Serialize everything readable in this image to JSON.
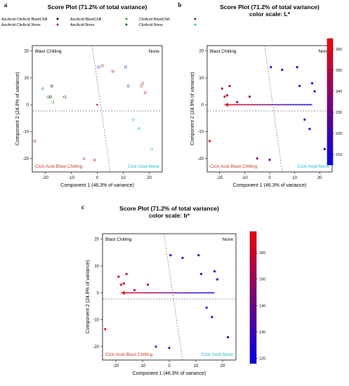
{
  "panel_letters": [
    "a",
    "b",
    "c"
  ],
  "chart_data": [
    {
      "panel": "a",
      "type": "scatter",
      "title": "Score Plot (71.2% of total variance)",
      "subtitle": "",
      "xlabel": "Component 1 (46.3% of variance)",
      "ylabel": "Component 2 (24.9% of variance)",
      "xlim": [
        -25,
        25
      ],
      "ylim": [
        -25,
        22
      ],
      "xticks": [
        -20,
        -10,
        0,
        10,
        20
      ],
      "yticks": [
        -20,
        -10,
        0,
        10,
        20
      ],
      "grid": false,
      "legend_position": "top",
      "corner_labels": {
        "top_left": "Blast Chilling",
        "top_right": "None",
        "bottom_left": "Cictr.Acid-Blast Chilling",
        "bottom_right": "Cictr.Acid-None"
      },
      "corner_label_colors": {
        "bottom_left": "#c0392b",
        "bottom_right": "#17becf"
      },
      "point_label_style": "text",
      "series": [
        {
          "name": "AscAcid-CitrAcid BlastChill",
          "color": "#000000",
          "labels": [
            "t0",
            "t2",
            "t1"
          ],
          "x": [
            -17.5,
            -18,
            -12.5
          ],
          "y": [
            7,
            3,
            3
          ]
        },
        {
          "name": "AscAcid-CitrAcid None",
          "color": "#b22222",
          "labels": [
            "t0",
            "t2",
            "t1",
            "t2",
            "t1",
            "t0"
          ],
          "x": [
            6,
            2,
            -5,
            -24,
            17,
            -1
          ],
          "y": [
            12.5,
            14.5,
            -20,
            -13.5,
            7,
            -20.5
          ]
        },
        {
          "name": "AscAcid BlastChill",
          "color": "#2ca02c",
          "labels": [
            "t0",
            "t2",
            "t1"
          ],
          "x": [
            -21,
            -19,
            -17
          ],
          "y": [
            6,
            3,
            1
          ]
        },
        {
          "name": "AscAcid None",
          "color": "#006400",
          "labels": [],
          "x": [],
          "y": []
        },
        {
          "name": "CitrAcid BlastChill",
          "color": "#2222cc",
          "labels": [
            "t0",
            "t2",
            "t1"
          ],
          "x": [
            0.5,
            11,
            12
          ],
          "y": [
            14,
            14,
            7
          ]
        },
        {
          "name": "CitrAcid None",
          "color": "#17becf",
          "labels": [
            "t2",
            "t0",
            "t1"
          ],
          "x": [
            14,
            16,
            21
          ],
          "y": [
            -5.5,
            -9,
            -16.5
          ]
        }
      ],
      "extra_points": {
        "labels": [
          "t1",
          "t2"
        ],
        "color": "#b22222",
        "x": [
          17.5,
          18.5
        ],
        "y": [
          8,
          4.5
        ]
      },
      "arrow": null,
      "trend_line": {
        "x": [
          -2,
          5
        ],
        "y": [
          22,
          -25
        ]
      },
      "reference_lines": {
        "h": -2.3,
        "v": 0
      }
    },
    {
      "panel": "b",
      "type": "scatter",
      "title": "Score Plot (71.2% of total variance)",
      "subtitle": "color scale: L*",
      "xlabel": "Component 1 (46.3% of variance)",
      "ylabel": "Component 2 (24.9% of variance)",
      "xlim": [
        -25,
        25
      ],
      "ylim": [
        -25,
        22
      ],
      "xticks": [
        -20,
        -10,
        0,
        10,
        20
      ],
      "yticks": [
        -20,
        -10,
        0,
        10,
        20
      ],
      "grid": false,
      "corner_labels": {
        "top_left": "Blast Chilling",
        "top_right": "None",
        "bottom_left": "Cictr.Acid-Blast Chilling",
        "bottom_right": "Cictr.Acid-None"
      },
      "corner_label_colors": {
        "bottom_left": "#c0392b",
        "bottom_right": "#17becf"
      },
      "point_label_style": "dot",
      "points": [
        {
          "x": -24,
          "y": -13.5,
          "value": 262
        },
        {
          "x": -19,
          "y": 6,
          "value": 252
        },
        {
          "x": -16,
          "y": 7,
          "value": 248
        },
        {
          "x": -18,
          "y": 3,
          "value": 255
        },
        {
          "x": -17,
          "y": 3.5,
          "value": 250
        },
        {
          "x": -13,
          "y": 1,
          "value": 245
        },
        {
          "x": -8,
          "y": 3,
          "value": 240
        },
        {
          "x": -5,
          "y": -20,
          "value": 238
        },
        {
          "x": 0,
          "y": -20.5,
          "value": 232
        },
        {
          "x": 0.5,
          "y": 14,
          "value": 215
        },
        {
          "x": 5,
          "y": 13,
          "value": 214
        },
        {
          "x": 11,
          "y": 14,
          "value": 212
        },
        {
          "x": 12,
          "y": 7,
          "value": 216
        },
        {
          "x": 17,
          "y": 8,
          "value": 210
        },
        {
          "x": 18,
          "y": 5,
          "value": 212
        },
        {
          "x": 14,
          "y": -5.5,
          "value": 214
        },
        {
          "x": 16,
          "y": -9,
          "value": 211
        },
        {
          "x": 22,
          "y": -16.5,
          "value": 213
        }
      ],
      "arrow": {
        "x_from": 17,
        "x_to": -18,
        "y": 0
      },
      "trend_line": {
        "x": [
          -2,
          5
        ],
        "y": [
          22,
          -25
        ]
      },
      "reference_lines": {
        "h": -2.3,
        "v": 0
      },
      "colorbar": {
        "min": 205,
        "max": 265,
        "ticks": [
          210,
          220,
          230,
          240,
          250,
          260
        ],
        "low_color": "#0000ff",
        "high_color": "#ff0000"
      }
    },
    {
      "panel": "c",
      "type": "scatter",
      "title": "Score Plot (71.2% of total variance)",
      "subtitle": "color scale: b*",
      "xlabel": "Component 1 (46.3% of variance)",
      "ylabel": "Component 2 (24.9% of variance)",
      "xlim": [
        -25,
        25
      ],
      "ylim": [
        -25,
        22
      ],
      "xticks": [
        -20,
        -10,
        0,
        10,
        20
      ],
      "yticks": [
        -20,
        -10,
        0,
        10,
        20
      ],
      "grid": false,
      "corner_labels": {
        "top_left": "Blast Chilling",
        "top_right": "None",
        "bottom_left": "Cictr.Acid-Blast Chilling",
        "bottom_right": "Cictr.Acid-None"
      },
      "corner_label_colors": {
        "bottom_left": "#c0392b",
        "bottom_right": "#17becf"
      },
      "point_label_style": "dot",
      "points": [
        {
          "x": -24,
          "y": -13.5,
          "value": 165
        },
        {
          "x": -19,
          "y": 6,
          "value": 158
        },
        {
          "x": -16,
          "y": 7,
          "value": 155
        },
        {
          "x": -18,
          "y": 3,
          "value": 162
        },
        {
          "x": -17,
          "y": 3.5,
          "value": 160
        },
        {
          "x": -13,
          "y": 1,
          "value": 152
        },
        {
          "x": -8,
          "y": 3,
          "value": 148
        },
        {
          "x": -5,
          "y": -20,
          "value": 135
        },
        {
          "x": 0,
          "y": -20.5,
          "value": 132
        },
        {
          "x": 0.5,
          "y": 14,
          "value": 125
        },
        {
          "x": 5,
          "y": 13,
          "value": 123
        },
        {
          "x": 11,
          "y": 14,
          "value": 122
        },
        {
          "x": 12,
          "y": 7,
          "value": 124
        },
        {
          "x": 17,
          "y": 8,
          "value": 121
        },
        {
          "x": 18,
          "y": 5,
          "value": 122
        },
        {
          "x": 14,
          "y": -5.5,
          "value": 126
        },
        {
          "x": 16,
          "y": -9,
          "value": 123
        },
        {
          "x": 22,
          "y": -16.5,
          "value": 124
        }
      ],
      "arrow": {
        "x_from": 17,
        "x_to": -18,
        "y": 0
      },
      "trend_line": {
        "x": [
          -2,
          5
        ],
        "y": [
          22,
          -25
        ]
      },
      "reference_lines": {
        "h": -2.3,
        "v": 0
      },
      "colorbar": {
        "min": 118,
        "max": 168,
        "ticks": [
          120,
          130,
          140,
          150,
          160
        ],
        "low_color": "#0000ff",
        "high_color": "#ff0000"
      }
    }
  ]
}
